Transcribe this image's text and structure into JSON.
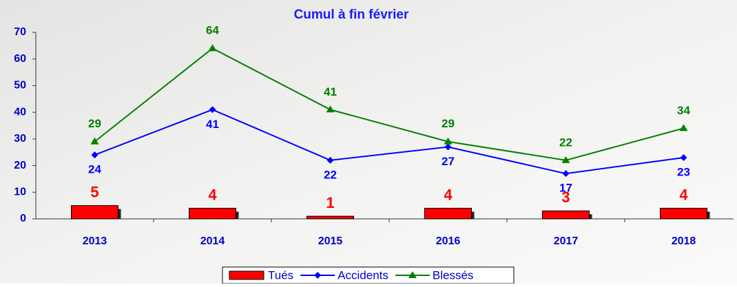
{
  "chart_data": {
    "type": "combo",
    "title": "Cumul à fin février",
    "categories": [
      "2013",
      "2014",
      "2015",
      "2016",
      "2017",
      "2018"
    ],
    "series": [
      {
        "name": "Tués",
        "type": "bar",
        "color": "#ff0000",
        "values": [
          5,
          4,
          1,
          4,
          3,
          4
        ]
      },
      {
        "name": "Accidents",
        "type": "line",
        "marker": "diamond",
        "color": "#0000ff",
        "values": [
          24,
          41,
          22,
          27,
          17,
          23
        ]
      },
      {
        "name": "Blessés",
        "type": "line",
        "marker": "triangle",
        "color": "#008000",
        "values": [
          29,
          64,
          41,
          29,
          22,
          34
        ]
      }
    ],
    "ylim": [
      0,
      70
    ],
    "yticks": [
      0,
      10,
      20,
      30,
      40,
      50,
      60,
      70
    ],
    "grid": false
  }
}
